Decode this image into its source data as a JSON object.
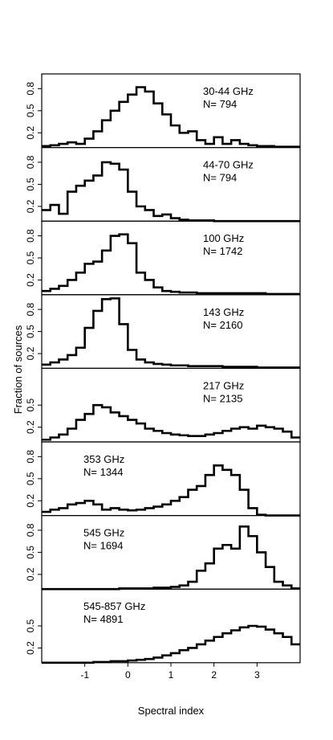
{
  "chart_data": {
    "type": "histogram",
    "xlabel": "Spectral index",
    "ylabel": "Fraction of sources",
    "xlim": [
      -2.0,
      4.0
    ],
    "xticks": [
      -1,
      0,
      1,
      2,
      3
    ],
    "xtick_labels": [
      "-1",
      "0",
      "1",
      "2",
      "3"
    ],
    "bin_width": 0.2,
    "bin_start": -2.0,
    "grid": false,
    "panels": [
      {
        "title": "30-44 GHz",
        "count_label": "N= 794",
        "label_side": "right",
        "ylim": [
          0,
          1.0
        ],
        "yticks": [
          0.2,
          0.5,
          0.8
        ],
        "ytick_labels": [
          "0.2",
          "0.5",
          "0.8"
        ],
        "values": [
          0.02,
          0.03,
          0.05,
          0.07,
          0.05,
          0.12,
          0.22,
          0.37,
          0.5,
          0.62,
          0.72,
          0.82,
          0.76,
          0.6,
          0.45,
          0.3,
          0.2,
          0.22,
          0.1,
          0.05,
          0.14,
          0.05,
          0.1,
          0.05,
          0.03,
          0.02,
          0.02,
          0.01,
          0.01,
          0.01
        ]
      },
      {
        "title": "44-70 GHz",
        "count_label": "N= 794",
        "label_side": "right",
        "ylim": [
          0,
          1.0
        ],
        "yticks": [
          0.2,
          0.5,
          0.8
        ],
        "ytick_labels": [
          "0.2",
          "0.5",
          "0.8"
        ],
        "values": [
          0.15,
          0.22,
          0.1,
          0.4,
          0.48,
          0.55,
          0.62,
          0.8,
          0.78,
          0.7,
          0.4,
          0.2,
          0.15,
          0.07,
          0.09,
          0.04,
          0.02,
          0.01,
          0.01,
          0.01,
          0.0,
          0.0,
          0.0,
          0.0,
          0.0,
          0.0,
          0.0,
          0.0,
          0.0,
          0.0
        ]
      },
      {
        "title": "100 GHz",
        "count_label": "N= 1742",
        "label_side": "right",
        "ylim": [
          0,
          1.0
        ],
        "yticks": [
          0.2,
          0.5,
          0.8
        ],
        "ytick_labels": [
          "0.2",
          "0.5",
          "0.8"
        ],
        "values": [
          0.05,
          0.08,
          0.12,
          0.2,
          0.3,
          0.42,
          0.45,
          0.6,
          0.8,
          0.82,
          0.7,
          0.3,
          0.2,
          0.1,
          0.05,
          0.04,
          0.03,
          0.03,
          0.02,
          0.02,
          0.02,
          0.02,
          0.02,
          0.02,
          0.02,
          0.02,
          0.01,
          0.01,
          0.01,
          0.01
        ]
      },
      {
        "title": "143 GHz",
        "count_label": "N= 2160",
        "label_side": "right",
        "ylim": [
          0,
          1.0
        ],
        "yticks": [
          0.2,
          0.5,
          0.8
        ],
        "ytick_labels": [
          "0.2",
          "0.5",
          "0.8"
        ],
        "values": [
          0.05,
          0.08,
          0.12,
          0.18,
          0.28,
          0.55,
          0.78,
          0.94,
          0.95,
          0.6,
          0.25,
          0.12,
          0.08,
          0.06,
          0.05,
          0.04,
          0.04,
          0.03,
          0.03,
          0.03,
          0.03,
          0.02,
          0.02,
          0.02,
          0.02,
          0.01,
          0.01,
          0.01,
          0.01,
          0.01
        ]
      },
      {
        "title": "217 GHz",
        "count_label": "N= 2135",
        "label_side": "right",
        "ylim": [
          0,
          1.0
        ],
        "yticks": [
          0.2,
          0.5
        ],
        "ytick_labels": [
          "0.2",
          "0.5"
        ],
        "values": [
          0.03,
          0.06,
          0.1,
          0.18,
          0.3,
          0.38,
          0.5,
          0.47,
          0.4,
          0.35,
          0.3,
          0.25,
          0.18,
          0.15,
          0.12,
          0.1,
          0.09,
          0.08,
          0.08,
          0.1,
          0.12,
          0.15,
          0.18,
          0.2,
          0.18,
          0.22,
          0.2,
          0.18,
          0.14,
          0.06
        ]
      },
      {
        "title": "353 GHz",
        "count_label": "N= 1344",
        "label_side": "left",
        "ylim": [
          0,
          1.0
        ],
        "yticks": [
          0.2,
          0.5,
          0.8
        ],
        "ytick_labels": [
          "0.2",
          "0.5",
          "0.8"
        ],
        "values": [
          0.05,
          0.08,
          0.1,
          0.15,
          0.17,
          0.2,
          0.15,
          0.08,
          0.1,
          0.08,
          0.07,
          0.08,
          0.1,
          0.12,
          0.15,
          0.2,
          0.25,
          0.35,
          0.4,
          0.55,
          0.68,
          0.62,
          0.55,
          0.35,
          0.1,
          0.01,
          0.0,
          0.0,
          0.0,
          0.0
        ]
      },
      {
        "title": "545 GHz",
        "count_label": "N= 1694",
        "label_side": "left",
        "ylim": [
          0,
          1.0
        ],
        "yticks": [
          0.2,
          0.5,
          0.8
        ],
        "ytick_labels": [
          "0.2",
          "0.5",
          "0.8"
        ],
        "values": [
          0.0,
          0.0,
          0.0,
          0.0,
          0.0,
          0.0,
          0.0,
          0.0,
          0.0,
          0.01,
          0.01,
          0.01,
          0.01,
          0.02,
          0.02,
          0.03,
          0.05,
          0.1,
          0.25,
          0.35,
          0.55,
          0.6,
          0.55,
          0.85,
          0.72,
          0.5,
          0.3,
          0.1,
          0.05,
          0.01
        ]
      },
      {
        "title": "545-857 GHz",
        "count_label": "N= 4891",
        "label_side": "left",
        "ylim": [
          0,
          1.0
        ],
        "yticks": [
          0.2,
          0.5
        ],
        "ytick_labels": [
          "0.2",
          "0.5"
        ],
        "values": [
          0.0,
          0.0,
          0.0,
          0.0,
          0.0,
          0.0,
          0.01,
          0.01,
          0.02,
          0.02,
          0.03,
          0.04,
          0.05,
          0.07,
          0.1,
          0.13,
          0.17,
          0.2,
          0.25,
          0.3,
          0.35,
          0.4,
          0.44,
          0.48,
          0.5,
          0.49,
          0.45,
          0.4,
          0.35,
          0.25
        ]
      }
    ]
  }
}
